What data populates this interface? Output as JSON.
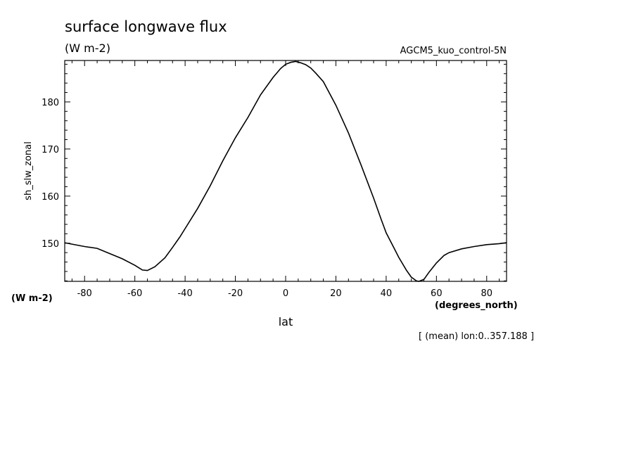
{
  "chart_data": {
    "type": "line",
    "title": "surface longwave flux",
    "subtitle": "(W m-2)",
    "dataset": "AGCM5_kuo_control-5N",
    "ylabel": "sh_slw_zonal",
    "yunits": "(W m-2)",
    "xlabel": "lat",
    "xunits": "(degrees_north)",
    "note": "[ (mean) lon:0..357.188 ]",
    "xlim": [
      -87.9,
      87.9
    ],
    "ylim": [
      141.9,
      188.8
    ],
    "xticks": [
      -80,
      -60,
      -40,
      -20,
      0,
      20,
      40,
      60,
      80
    ],
    "yticks": [
      150,
      160,
      170,
      180
    ],
    "grid": false,
    "series": [
      {
        "x": [
          -87.9,
          -85,
          -80,
          -75,
          -70,
          -65,
          -60,
          -57,
          -55,
          -52,
          -48,
          -45,
          -42,
          -40,
          -35,
          -30,
          -25,
          -20,
          -15,
          -10,
          -5,
          -2,
          0,
          2,
          4,
          6,
          8,
          10,
          12,
          15,
          20,
          25,
          30,
          35,
          38,
          40,
          43,
          45,
          48,
          50,
          52,
          53,
          55,
          57,
          60,
          63,
          65,
          70,
          75,
          80,
          85,
          87.9
        ],
        "y": [
          150.1,
          149.8,
          149.3,
          148.9,
          147.8,
          146.7,
          145.3,
          144.3,
          144.2,
          145.0,
          146.9,
          149.1,
          151.4,
          153.1,
          157.4,
          162.2,
          167.5,
          172.4,
          176.7,
          181.5,
          185.2,
          187.1,
          188.0,
          188.4,
          188.6,
          188.3,
          187.9,
          187.2,
          186.1,
          184.3,
          179.3,
          173.4,
          166.6,
          159.6,
          155.1,
          152.2,
          149.1,
          147.0,
          144.3,
          142.8,
          142.0,
          141.9,
          142.3,
          143.8,
          145.8,
          147.4,
          148.0,
          148.8,
          149.3,
          149.7,
          149.9,
          150.1
        ]
      }
    ]
  }
}
